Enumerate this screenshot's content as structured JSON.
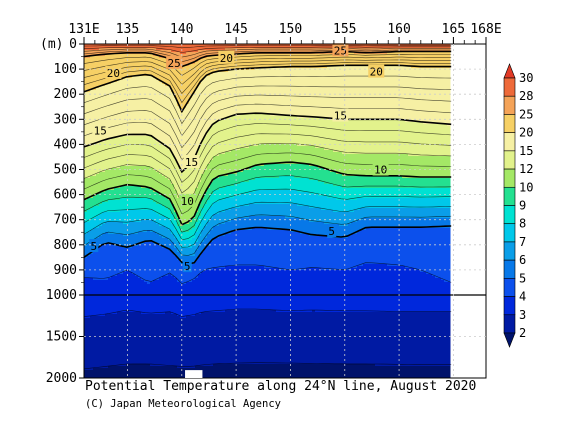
{
  "title": "Potential Temperature along 24°N line, August 2020",
  "credit": "(C) Japan Meteorological Agency",
  "chart_data": {
    "type": "heatmap",
    "title": "Potential Temperature along 24°N line, August 2020",
    "x_axis": {
      "ticks": [
        131,
        135,
        140,
        145,
        150,
        155,
        160,
        165,
        168
      ],
      "tick_labels": [
        "131E",
        "135",
        "140",
        "145",
        "150",
        "155",
        "160",
        "165",
        "168E"
      ],
      "range": [
        131,
        168
      ]
    },
    "y_axis": {
      "unit_label": "(m)",
      "upper_ticks": [
        0,
        100,
        200,
        300,
        400,
        500,
        600,
        700,
        800,
        900,
        1000
      ],
      "lower_ticks": [
        1000,
        1500,
        2000
      ],
      "range": [
        0,
        2000
      ],
      "scale_break_at": 1000,
      "inverted": true,
      "data_x_extent": [
        131,
        164.8
      ]
    },
    "contour_levels": [
      2,
      3,
      4,
      5,
      6,
      7,
      8,
      9,
      10,
      11,
      12,
      13,
      14,
      15,
      16,
      17,
      18,
      19,
      20,
      21,
      22,
      23,
      24,
      25,
      26,
      27,
      28,
      29,
      30
    ],
    "bold_contours": [
      5,
      10,
      15,
      20,
      25
    ],
    "fill_levels": [
      2,
      3,
      4,
      5,
      6,
      7,
      8,
      9,
      10,
      12,
      15,
      20,
      25,
      28,
      30
    ],
    "fill_colors": [
      "#00126b",
      "#001aa3",
      "#0028dc",
      "#0c50ec",
      "#0778e8",
      "#0a9ee8",
      "#00c8ea",
      "#00e2d2",
      "#24e090",
      "#a4e866",
      "#e2f28c",
      "#f6f0a4",
      "#f6d065",
      "#f4a358",
      "#ee6a3a",
      "#e23a26"
    ],
    "colorbar": {
      "labels": [
        "30",
        "28",
        "25",
        "20",
        "15",
        "12",
        "10",
        "9",
        "8",
        "7",
        "6",
        "5",
        "4",
        "3",
        "2"
      ]
    },
    "isotherm_depths_m": {
      "x": [
        131,
        133,
        135,
        137,
        139,
        140,
        141,
        142,
        143,
        145,
        147,
        150,
        152,
        155,
        157,
        160,
        162,
        164.8
      ],
      "series": [
        {
          "name": "25",
          "values": [
            50,
            40,
            35,
            35,
            60,
            90,
            75,
            50,
            45,
            40,
            35,
            35,
            35,
            30,
            35,
            30,
            30,
            30
          ]
        },
        {
          "name": "20",
          "values": [
            190,
            160,
            130,
            120,
            170,
            270,
            200,
            130,
            110,
            100,
            95,
            90,
            90,
            85,
            85,
            85,
            90,
            90
          ]
        },
        {
          "name": "15",
          "values": [
            410,
            380,
            360,
            360,
            420,
            510,
            470,
            370,
            310,
            280,
            275,
            285,
            290,
            300,
            300,
            300,
            310,
            320
          ]
        },
        {
          "name": "10",
          "values": [
            620,
            580,
            560,
            570,
            620,
            720,
            700,
            600,
            530,
            510,
            480,
            470,
            480,
            520,
            525,
            525,
            530,
            530
          ]
        },
        {
          "name": "5",
          "values": [
            850,
            790,
            810,
            780,
            820,
            870,
            880,
            820,
            770,
            740,
            730,
            740,
            760,
            770,
            730,
            730,
            730,
            725
          ]
        },
        {
          "name": "4",
          "values": [
            930,
            935,
            900,
            950,
            910,
            955,
            940,
            900,
            890,
            880,
            880,
            900,
            890,
            900,
            870,
            880,
            900,
            950
          ]
        },
        {
          "name": "3",
          "values": [
            1260,
            1230,
            1180,
            1220,
            1200,
            1260,
            1240,
            1200,
            1190,
            1170,
            1170,
            1190,
            1180,
            1190,
            1190,
            1200,
            1200,
            1200
          ]
        },
        {
          "name": "2",
          "values": [
            1890,
            1860,
            1830,
            1830,
            1850,
            1860,
            1860,
            1840,
            1830,
            1820,
            1815,
            1820,
            1825,
            1830,
            1830,
            1835,
            1840,
            1840
          ]
        }
      ]
    },
    "contour_labels": [
      {
        "text": "25",
        "x": 139.3,
        "depth": 75
      },
      {
        "text": "20",
        "x": 144.1,
        "depth": 55
      },
      {
        "text": "25",
        "x": 154.6,
        "depth": 25
      },
      {
        "text": "20",
        "x": 133.7,
        "depth": 115
      },
      {
        "text": "20",
        "x": 157.9,
        "depth": 110
      },
      {
        "text": "15",
        "x": 132.5,
        "depth": 345
      },
      {
        "text": "15",
        "x": 154.6,
        "depth": 285
      },
      {
        "text": "15",
        "x": 140.9,
        "depth": 470
      },
      {
        "text": "10",
        "x": 158.3,
        "depth": 500
      },
      {
        "text": "10",
        "x": 140.5,
        "depth": 625
      },
      {
        "text": "5",
        "x": 131.9,
        "depth": 805
      },
      {
        "text": "5",
        "x": 153.8,
        "depth": 745
      },
      {
        "text": "5",
        "x": 140.5,
        "depth": 885
      }
    ]
  }
}
